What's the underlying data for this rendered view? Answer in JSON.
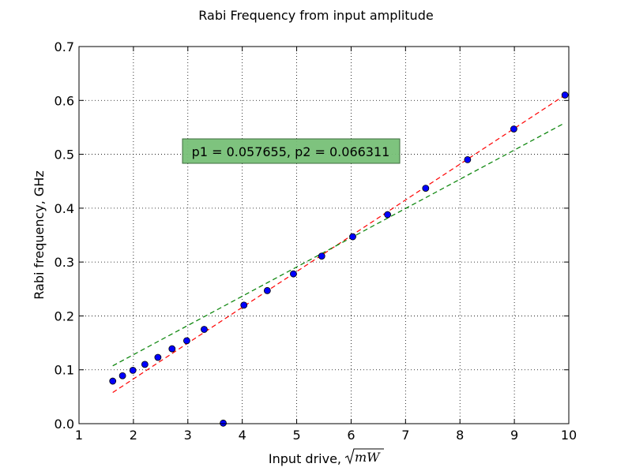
{
  "chart_data": {
    "type": "scatter",
    "title": "Rabi Frequency from input amplitude",
    "xlabel": "Input drive,",
    "xlabel_math": "mW",
    "ylabel": "Rabi frequency, GHz",
    "xlim": [
      1,
      10
    ],
    "ylim": [
      0,
      0.7
    ],
    "xticks": [
      1,
      2,
      3,
      4,
      5,
      6,
      7,
      8,
      9,
      10
    ],
    "yticks": [
      0.0,
      0.1,
      0.2,
      0.3,
      0.4,
      0.5,
      0.6,
      0.7
    ],
    "grid": true,
    "annotation": "p1 = 0.057655, p2 = 0.066311",
    "points": {
      "x": [
        1.62,
        1.8,
        1.99,
        2.21,
        2.45,
        2.71,
        2.98,
        3.3,
        3.65,
        4.03,
        4.46,
        4.94,
        5.46,
        6.03,
        6.67,
        7.37,
        8.14,
        8.99,
        9.93
      ],
      "y": [
        0.079,
        0.089,
        0.099,
        0.11,
        0.123,
        0.139,
        0.154,
        0.175,
        0.001,
        0.22,
        0.247,
        0.278,
        0.311,
        0.347,
        0.388,
        0.437,
        0.49,
        0.547,
        0.61
      ]
    },
    "fit_lines": [
      {
        "color": "#ff0000",
        "x": [
          1.62,
          9.93
        ],
        "y": [
          0.0578,
          0.6099
        ]
      },
      {
        "color": "#008000",
        "x": [
          1.62,
          9.93
        ],
        "y": [
          0.1074,
          0.5584
        ]
      }
    ],
    "colors": {
      "marker_fill": "#0000ff",
      "marker_edge": "#000000",
      "annotation_bg": "#77c077"
    }
  }
}
